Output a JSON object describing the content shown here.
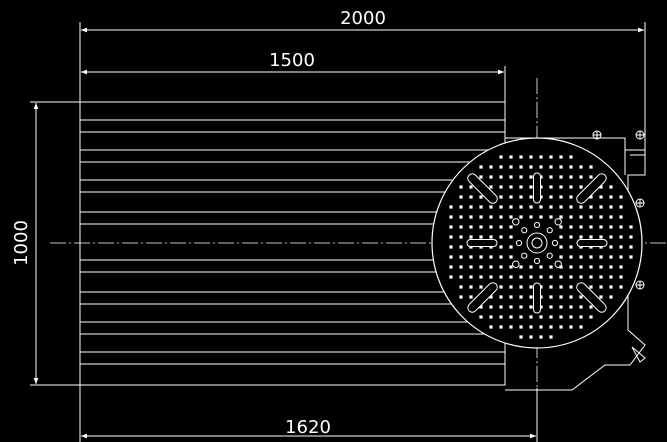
{
  "drawing": {
    "background": "#000000",
    "line_color": "#FFFFFF",
    "dimensions": {
      "top_overall": "2000",
      "top_inner": "1500",
      "left_height": "1000",
      "bottom_length": "1620"
    },
    "rotary_table": {
      "radial_slots": 8,
      "hole_grid": "radial pattern of mounting holes"
    }
  }
}
